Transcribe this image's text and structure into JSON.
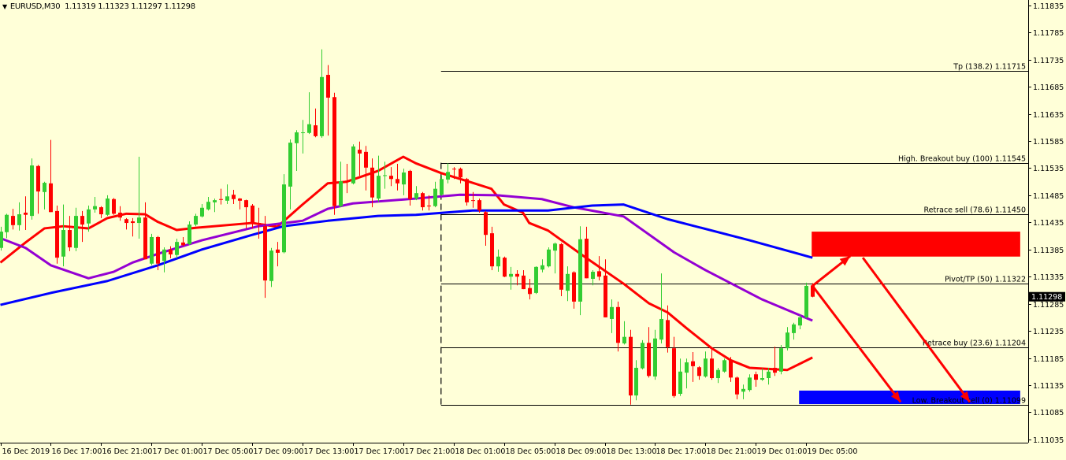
{
  "header": {
    "menu_icon": "triangle-down-icon",
    "symbol": "EURUSD,M30",
    "ohlc": "1.11319 1.11323 1.11297 1.11298"
  },
  "colors": {
    "background": "#FFFFD8",
    "bull": "#32CD32",
    "bear": "#FF0000",
    "ma_fast": "#FF0000",
    "ma_mid": "#9400D3",
    "ma_slow": "#0000FF",
    "zone_sell": "#FF0000",
    "zone_buy": "#0000FF",
    "arrows": "#FF0000"
  },
  "chart_data": {
    "type": "candlestick",
    "symbol": "EURUSD",
    "timeframe": "M30",
    "first_bar_time": "16 Dec 13:00",
    "ylim": [
      1.1101,
      1.11845
    ],
    "y_ticks": [
      "1.11835",
      "1.11785",
      "1.11735",
      "1.11685",
      "1.11635",
      "1.11585",
      "1.11535",
      "1.11485",
      "1.11435",
      "1.11385",
      "1.11335",
      "1.11285",
      "1.11235",
      "1.11185",
      "1.11135",
      "1.11085",
      "1.11035"
    ],
    "x_ticks": [
      "16 Dec 2019",
      "16 Dec 17:00",
      "16 Dec 21:00",
      "17 Dec 01:00",
      "17 Dec 05:00",
      "17 Dec 09:00",
      "17 Dec 13:00",
      "17 Dec 17:00",
      "17 Dec 21:00",
      "18 Dec 01:00",
      "18 Dec 05:00",
      "18 Dec 09:00",
      "18 Dec 13:00",
      "18 Dec 17:00",
      "18 Dec 21:00",
      "19 Dec 01:00",
      "19 Dec 05:00"
    ],
    "current_price": "1.11298",
    "candles_ohlc": [
      [
        1.11388,
        1.11427,
        1.11383,
        1.11418
      ],
      [
        1.11417,
        1.11451,
        1.11406,
        1.11449
      ],
      [
        1.11447,
        1.1146,
        1.11422,
        1.1143
      ],
      [
        1.1143,
        1.11472,
        1.1142,
        1.1145
      ],
      [
        1.11453,
        1.11483,
        1.11421,
        1.11449
      ],
      [
        1.11447,
        1.11553,
        1.1144,
        1.1154
      ],
      [
        1.11539,
        1.11541,
        1.11451,
        1.11492
      ],
      [
        1.11491,
        1.1151,
        1.11459,
        1.11508
      ],
      [
        1.11507,
        1.11587,
        1.11454,
        1.11454
      ],
      [
        1.11456,
        1.11466,
        1.11359,
        1.1137
      ],
      [
        1.11372,
        1.11468,
        1.11354,
        1.11421
      ],
      [
        1.11421,
        1.11447,
        1.11382,
        1.11389
      ],
      [
        1.11388,
        1.11462,
        1.11382,
        1.11447
      ],
      [
        1.11447,
        1.11456,
        1.11399,
        1.11431
      ],
      [
        1.11433,
        1.11466,
        1.11418,
        1.11459
      ],
      [
        1.11459,
        1.11482,
        1.11453,
        1.11465
      ],
      [
        1.11463,
        1.11465,
        1.11443,
        1.1145
      ],
      [
        1.11449,
        1.11485,
        1.11447,
        1.11479
      ],
      [
        1.11478,
        1.1148,
        1.11449,
        1.11451
      ],
      [
        1.11453,
        1.11465,
        1.11438,
        1.11444
      ],
      [
        1.11441,
        1.11443,
        1.11422,
        1.11434
      ],
      [
        1.11437,
        1.11443,
        1.11409,
        1.11434
      ],
      [
        1.11434,
        1.11556,
        1.11405,
        1.11444
      ],
      [
        1.11444,
        1.11472,
        1.11367,
        1.11367
      ],
      [
        1.11359,
        1.11414,
        1.11356,
        1.11408
      ],
      [
        1.11408,
        1.1141,
        1.11347,
        1.11359
      ],
      [
        1.11364,
        1.11389,
        1.11343,
        1.11385
      ],
      [
        1.11385,
        1.11391,
        1.11369,
        1.11376
      ],
      [
        1.11375,
        1.11405,
        1.11369,
        1.11399
      ],
      [
        1.11398,
        1.11408,
        1.11391,
        1.11393
      ],
      [
        1.11395,
        1.11437,
        1.11393,
        1.11431
      ],
      [
        1.11431,
        1.11451,
        1.11428,
        1.11447
      ],
      [
        1.11446,
        1.11469,
        1.11444,
        1.11462
      ],
      [
        1.11459,
        1.11482,
        1.11457,
        1.11473
      ],
      [
        1.11472,
        1.11479,
        1.11454,
        1.11476
      ],
      [
        1.11478,
        1.11497,
        1.11468,
        1.11477
      ],
      [
        1.11475,
        1.11505,
        1.11469,
        1.11483
      ],
      [
        1.11486,
        1.11495,
        1.11469,
        1.11478
      ],
      [
        1.11479,
        1.1148,
        1.11459,
        1.11475
      ],
      [
        1.11476,
        1.11477,
        1.11424,
        1.11463
      ],
      [
        1.11466,
        1.11469,
        1.11424,
        1.11434
      ],
      [
        1.11434,
        1.11462,
        1.11405,
        1.11433
      ],
      [
        1.11428,
        1.11447,
        1.11296,
        1.11328
      ],
      [
        1.11327,
        1.11388,
        1.11316,
        1.11383
      ],
      [
        1.11385,
        1.11399,
        1.11354,
        1.11379
      ],
      [
        1.1138,
        1.11524,
        1.11378,
        1.11505
      ],
      [
        1.11501,
        1.11588,
        1.11459,
        1.11582
      ],
      [
        1.11581,
        1.11605,
        1.1153,
        1.11601
      ],
      [
        1.116,
        1.11624,
        1.11562,
        1.11601
      ],
      [
        1.116,
        1.11675,
        1.11598,
        1.11616
      ],
      [
        1.11614,
        1.11645,
        1.11592,
        1.11594
      ],
      [
        1.11594,
        1.11754,
        1.11591,
        1.11703
      ],
      [
        1.11707,
        1.11725,
        1.11595,
        1.11665
      ],
      [
        1.11666,
        1.11674,
        1.11449,
        1.11465
      ],
      [
        1.11465,
        1.11547,
        1.11463,
        1.11511
      ],
      [
        1.11512,
        1.11543,
        1.11489,
        1.1151
      ],
      [
        1.11507,
        1.11579,
        1.11505,
        1.11575
      ],
      [
        1.11569,
        1.11584,
        1.11521,
        1.11562
      ],
      [
        1.11565,
        1.11576,
        1.11494,
        1.11536
      ],
      [
        1.11536,
        1.11553,
        1.11463,
        1.11481
      ],
      [
        1.11479,
        1.11558,
        1.11473,
        1.11521
      ],
      [
        1.11521,
        1.11547,
        1.11497,
        1.11522
      ],
      [
        1.11521,
        1.11537,
        1.11502,
        1.11515
      ],
      [
        1.11515,
        1.11543,
        1.11494,
        1.11507
      ],
      [
        1.11505,
        1.11534,
        1.11485,
        1.11527
      ],
      [
        1.1153,
        1.11532,
        1.11466,
        1.11478
      ],
      [
        1.11479,
        1.11502,
        1.11476,
        1.11489
      ],
      [
        1.11489,
        1.11491,
        1.11457,
        1.11463
      ],
      [
        1.11466,
        1.11485,
        1.11457,
        1.11465
      ],
      [
        1.11465,
        1.1151,
        1.11463,
        1.11497
      ],
      [
        1.11486,
        1.11521,
        1.11484,
        1.11515
      ],
      [
        1.11514,
        1.11544,
        1.11507,
        1.11528
      ],
      [
        1.11534,
        1.11537,
        1.11515,
        1.11533
      ],
      [
        1.11534,
        1.11536,
        1.11507,
        1.11518
      ],
      [
        1.11515,
        1.11517,
        1.11466,
        1.11472
      ],
      [
        1.11476,
        1.11491,
        1.11462,
        1.11475
      ],
      [
        1.11476,
        1.11479,
        1.11453,
        1.11457
      ],
      [
        1.11454,
        1.11456,
        1.11392,
        1.11412
      ],
      [
        1.11415,
        1.11427,
        1.11347,
        1.11354
      ],
      [
        1.11354,
        1.11385,
        1.11344,
        1.11372
      ],
      [
        1.1137,
        1.11372,
        1.11334,
        1.11335
      ],
      [
        1.11335,
        1.11353,
        1.11311,
        1.1134
      ],
      [
        1.1134,
        1.11347,
        1.11319,
        1.11335
      ],
      [
        1.11337,
        1.11347,
        1.11312,
        1.11312
      ],
      [
        1.11314,
        1.11331,
        1.11293,
        1.11303
      ],
      [
        1.11305,
        1.11354,
        1.11303,
        1.11353
      ],
      [
        1.11348,
        1.11367,
        1.11343,
        1.11356
      ],
      [
        1.11354,
        1.11389,
        1.11352,
        1.11385
      ],
      [
        1.11383,
        1.11398,
        1.11341,
        1.11396
      ],
      [
        1.11395,
        1.11397,
        1.11299,
        1.11311
      ],
      [
        1.11309,
        1.11354,
        1.1129,
        1.1134
      ],
      [
        1.11343,
        1.11345,
        1.11276,
        1.11289
      ],
      [
        1.11289,
        1.11428,
        1.11264,
        1.11404
      ],
      [
        1.11405,
        1.11427,
        1.11332,
        1.11332
      ],
      [
        1.11331,
        1.11347,
        1.11319,
        1.11344
      ],
      [
        1.11345,
        1.11373,
        1.11328,
        1.11335
      ],
      [
        1.11337,
        1.11367,
        1.1126,
        1.1126
      ],
      [
        1.11257,
        1.11293,
        1.11231,
        1.11279
      ],
      [
        1.11279,
        1.11289,
        1.11197,
        1.11213
      ],
      [
        1.11212,
        1.11253,
        1.1121,
        1.11224
      ],
      [
        1.11224,
        1.11237,
        1.11099,
        1.11116
      ],
      [
        1.11116,
        1.11181,
        1.11107,
        1.11167
      ],
      [
        1.11166,
        1.11218,
        1.11164,
        1.11213
      ],
      [
        1.11213,
        1.11242,
        1.11149,
        1.11152
      ],
      [
        1.11151,
        1.11237,
        1.11145,
        1.11221
      ],
      [
        1.11219,
        1.11341,
        1.11212,
        1.11257
      ],
      [
        1.11255,
        1.11282,
        1.11195,
        1.11205
      ],
      [
        1.11203,
        1.11224,
        1.11112,
        1.11115
      ],
      [
        1.11119,
        1.11184,
        1.11115,
        1.1116
      ],
      [
        1.11158,
        1.11184,
        1.11129,
        1.11177
      ],
      [
        1.11179,
        1.11196,
        1.11141,
        1.1117
      ],
      [
        1.11168,
        1.1117,
        1.11145,
        1.11152
      ],
      [
        1.11151,
        1.11197,
        1.11149,
        1.11184
      ],
      [
        1.11184,
        1.11203,
        1.11145,
        1.11148
      ],
      [
        1.11148,
        1.11167,
        1.11139,
        1.11163
      ],
      [
        1.1116,
        1.11184,
        1.11158,
        1.11181
      ],
      [
        1.11181,
        1.11187,
        1.11141,
        1.11149
      ],
      [
        1.11149,
        1.11151,
        1.11109,
        1.11118
      ],
      [
        1.11123,
        1.11136,
        1.11109,
        1.11128
      ],
      [
        1.11126,
        1.11155,
        1.11123,
        1.11149
      ],
      [
        1.11155,
        1.1116,
        1.11132,
        1.11145
      ],
      [
        1.11145,
        1.11166,
        1.11143,
        1.11148
      ],
      [
        1.11148,
        1.11167,
        1.11136,
        1.1116
      ],
      [
        1.11167,
        1.11206,
        1.11152,
        1.11158
      ],
      [
        1.1116,
        1.11209,
        1.11155,
        1.11203
      ],
      [
        1.11203,
        1.11242,
        1.11199,
        1.11232
      ],
      [
        1.11231,
        1.1125,
        1.11219,
        1.11247
      ],
      [
        1.11245,
        1.11264,
        1.11238,
        1.1126
      ],
      [
        1.1126,
        1.11324,
        1.11258,
        1.11318
      ],
      [
        1.11319,
        1.11323,
        1.11297,
        1.11298
      ]
    ],
    "moving_averages": [
      {
        "role": "fast",
        "color": "#FF0000",
        "points": [
          [
            "16 Dec 13:00",
            1.11361
          ],
          [
            "16 Dec 15:00",
            1.11398
          ],
          [
            "16 Dec 16:30",
            1.11424
          ],
          [
            "16 Dec 18:00",
            1.11428
          ],
          [
            "16 Dec 20:00",
            1.11424
          ],
          [
            "16 Dec 21:30",
            1.11443
          ],
          [
            "16 Dec 23:00",
            1.11451
          ],
          [
            "17 Dec 00:30",
            1.1145
          ],
          [
            "17 Dec 01:30",
            1.11436
          ],
          [
            "17 Dec 03:00",
            1.11421
          ],
          [
            "17 Dec 04:30",
            1.11425
          ],
          [
            "17 Dec 09:00",
            1.11434
          ],
          [
            "17 Dec 11:00",
            1.11427
          ],
          [
            "17 Dec 13:00",
            1.11468
          ],
          [
            "17 Dec 15:00",
            1.11507
          ],
          [
            "17 Dec 16:30",
            1.1151
          ],
          [
            "17 Dec 19:00",
            1.1153
          ],
          [
            "17 Dec 21:00",
            1.11556
          ],
          [
            "17 Dec 22:00",
            1.11544
          ],
          [
            "18 Dec 00:00",
            1.11526
          ],
          [
            "18 Dec 02:30",
            1.11508
          ],
          [
            "18 Dec 04:00",
            1.11497
          ],
          [
            "18 Dec 05:00",
            1.11468
          ],
          [
            "18 Dec 06:30",
            1.11453
          ],
          [
            "18 Dec 07:00",
            1.11434
          ],
          [
            "18 Dec 08:30",
            1.1142
          ],
          [
            "18 Dec 10:00",
            1.11395
          ],
          [
            "18 Dec 11:30",
            1.1137
          ],
          [
            "18 Dec 12:30",
            1.11354
          ],
          [
            "18 Dec 14:30",
            1.11322
          ],
          [
            "18 Dec 16:30",
            1.11286
          ],
          [
            "18 Dec 18:00",
            1.11269
          ],
          [
            "18 Dec 19:30",
            1.1124
          ],
          [
            "18 Dec 21:30",
            1.11203
          ],
          [
            "18 Dec 23:00",
            1.11181
          ],
          [
            "19 Dec 00:30",
            1.11167
          ],
          [
            "19 Dec 03:30",
            1.11163
          ],
          [
            "19 Dec 05:30",
            1.11186
          ]
        ]
      },
      {
        "role": "medium",
        "color": "#9400D3",
        "points": [
          [
            "16 Dec 13:00",
            1.11406
          ],
          [
            "16 Dec 15:00",
            1.11388
          ],
          [
            "16 Dec 17:00",
            1.11356
          ],
          [
            "16 Dec 20:00",
            1.11332
          ],
          [
            "16 Dec 22:00",
            1.11344
          ],
          [
            "16 Dec 23:30",
            1.11361
          ],
          [
            "17 Dec 01:30",
            1.11377
          ],
          [
            "17 Dec 05:00",
            1.11402
          ],
          [
            "17 Dec 09:30",
            1.11428
          ],
          [
            "17 Dec 13:00",
            1.11438
          ],
          [
            "17 Dec 15:00",
            1.1146
          ],
          [
            "17 Dec 17:00",
            1.1147
          ],
          [
            "17 Dec 22:00",
            1.11479
          ],
          [
            "18 Dec 01:30",
            1.11486
          ],
          [
            "18 Dec 04:30",
            1.11485
          ],
          [
            "18 Dec 08:00",
            1.11478
          ],
          [
            "18 Dec 10:30",
            1.11463
          ],
          [
            "18 Dec 14:30",
            1.11446
          ],
          [
            "18 Dec 18:30",
            1.1138
          ],
          [
            "18 Dec 21:00",
            1.11347
          ],
          [
            "19 Dec 01:30",
            1.11293
          ],
          [
            "19 Dec 05:30",
            1.11254
          ]
        ]
      },
      {
        "role": "slow",
        "color": "#0000FF",
        "points": [
          [
            "16 Dec 13:00",
            1.11283
          ],
          [
            "16 Dec 17:00",
            1.11305
          ],
          [
            "16 Dec 21:30",
            1.11327
          ],
          [
            "17 Dec 01:30",
            1.11356
          ],
          [
            "17 Dec 05:00",
            1.11385
          ],
          [
            "17 Dec 09:00",
            1.11412
          ],
          [
            "17 Dec 11:30",
            1.11428
          ],
          [
            "17 Dec 15:00",
            1.11438
          ],
          [
            "17 Dec 19:00",
            1.11447
          ],
          [
            "17 Dec 22:00",
            1.11449
          ],
          [
            "18 Dec 02:30",
            1.11457
          ],
          [
            "18 Dec 08:30",
            1.11457
          ],
          [
            "18 Dec 12:00",
            1.11466
          ],
          [
            "18 Dec 14:30",
            1.11468
          ],
          [
            "18 Dec 18:00",
            1.11441
          ],
          [
            "19 Dec 00:30",
            1.11402
          ],
          [
            "19 Dec 05:30",
            1.1137
          ]
        ]
      }
    ],
    "fibonacci": {
      "start_time": "18 Dec 00:00",
      "end_time": "19 Dec 22:00",
      "high": 1.11545,
      "low": 1.11099,
      "levels": [
        {
          "label": "Tp (138.2)",
          "price": 1.11715,
          "price_text": "1.11715"
        },
        {
          "label": "High. Breakout buy (100)",
          "price": 1.11545,
          "price_text": "1.11545"
        },
        {
          "label": "Retrace sell (78.6)",
          "price": 1.1145,
          "price_text": "1.11450"
        },
        {
          "label": "Pivot/TP (50)",
          "price": 1.11322,
          "price_text": "1.11322"
        },
        {
          "label": "Retrace buy (23.6)",
          "price": 1.11204,
          "price_text": "1.11204"
        },
        {
          "label": "Low. Breakout sell (0)",
          "price": 1.11099,
          "price_text": "1.11099"
        }
      ]
    },
    "zones": [
      {
        "name": "sell-zone",
        "color": "#FF0000",
        "time_from": "19 Dec 05:30",
        "time_to": "19 Dec 22:00",
        "price_top": 1.11418,
        "price_bottom": 1.11372
      },
      {
        "name": "buy-zone",
        "color": "#0000FF",
        "time_from": "19 Dec 04:30",
        "time_to": "19 Dec 22:00",
        "price_top": 1.11125,
        "price_bottom": 1.111
      }
    ],
    "arrows": [
      {
        "from": [
          "19 Dec 05:30",
          1.11318
        ],
        "to": [
          "19 Dec 08:30",
          1.11373
        ]
      },
      {
        "from": [
          "19 Dec 05:30",
          1.11318
        ],
        "to": [
          "19 Dec 12:30",
          1.11104
        ]
      },
      {
        "from": [
          "19 Dec 09:30",
          1.1137
        ],
        "to": [
          "19 Dec 18:00",
          1.11104
        ]
      }
    ]
  }
}
